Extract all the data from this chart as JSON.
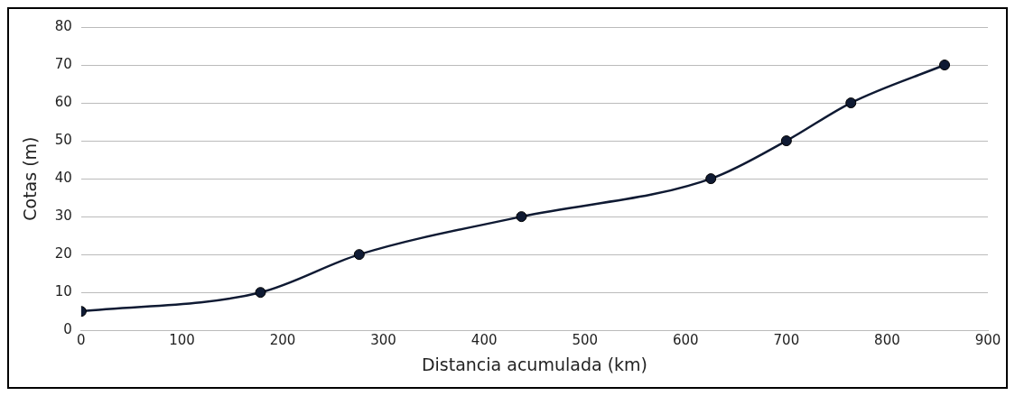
{
  "chart_data": {
    "type": "line",
    "xlabel": "Distancia acumulada (km)",
    "ylabel": "Cotas (m)",
    "x": [
      0,
      178,
      276,
      437,
      625,
      700,
      764,
      857
    ],
    "series": [
      {
        "color": "#0f1a33",
        "values": [
          5,
          10,
          20,
          30,
          40,
          50,
          60,
          70
        ]
      }
    ],
    "xlim": [
      0,
      900
    ],
    "xticks": [
      0,
      100,
      200,
      300,
      400,
      500,
      600,
      700,
      800,
      900
    ],
    "ylim": [
      0,
      80
    ],
    "yticks": [
      0,
      10,
      20,
      30,
      40,
      50,
      60,
      70,
      80
    ],
    "grid": "y",
    "marker": "circle",
    "line_style": "solid",
    "legend": false
  }
}
